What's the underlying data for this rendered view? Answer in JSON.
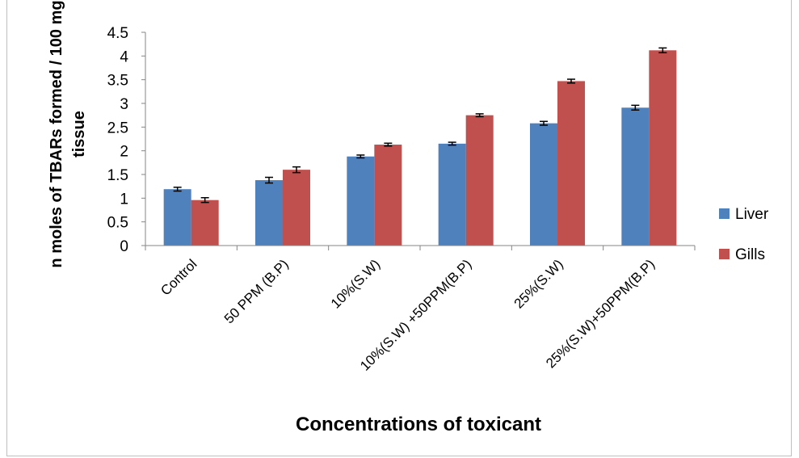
{
  "chart_data": {
    "type": "bar",
    "title": "",
    "xlabel": "Concentrations of toxicant",
    "ylabel_lines": [
      "n moles of TBARs formed / 100 mg",
      "tissue"
    ],
    "ylim": [
      0,
      4.5
    ],
    "ytick_step": 0.5,
    "yticks": [
      "0",
      "0.5",
      "1",
      "1.5",
      "2",
      "2.5",
      "3",
      "3.5",
      "4",
      "4.5"
    ],
    "grid": false,
    "legend_position": "right",
    "categories": [
      "Control",
      "50 PPM (B.P)",
      "10%(S.W)",
      "10%(S.W) +50PPM(B.P)",
      "25%(S.W)",
      "25%(S.W)+50PPM(B.P)"
    ],
    "series": [
      {
        "name": "Liver",
        "color": "#4f81bd",
        "values": [
          1.19,
          1.38,
          1.88,
          2.15,
          2.58,
          2.91
        ],
        "errors": [
          0.04,
          0.06,
          0.03,
          0.03,
          0.04,
          0.05
        ]
      },
      {
        "name": "Gills",
        "color": "#c0504d",
        "values": [
          0.96,
          1.6,
          2.13,
          2.75,
          3.47,
          4.12
        ],
        "errors": [
          0.05,
          0.06,
          0.03,
          0.03,
          0.04,
          0.05
        ]
      }
    ]
  }
}
